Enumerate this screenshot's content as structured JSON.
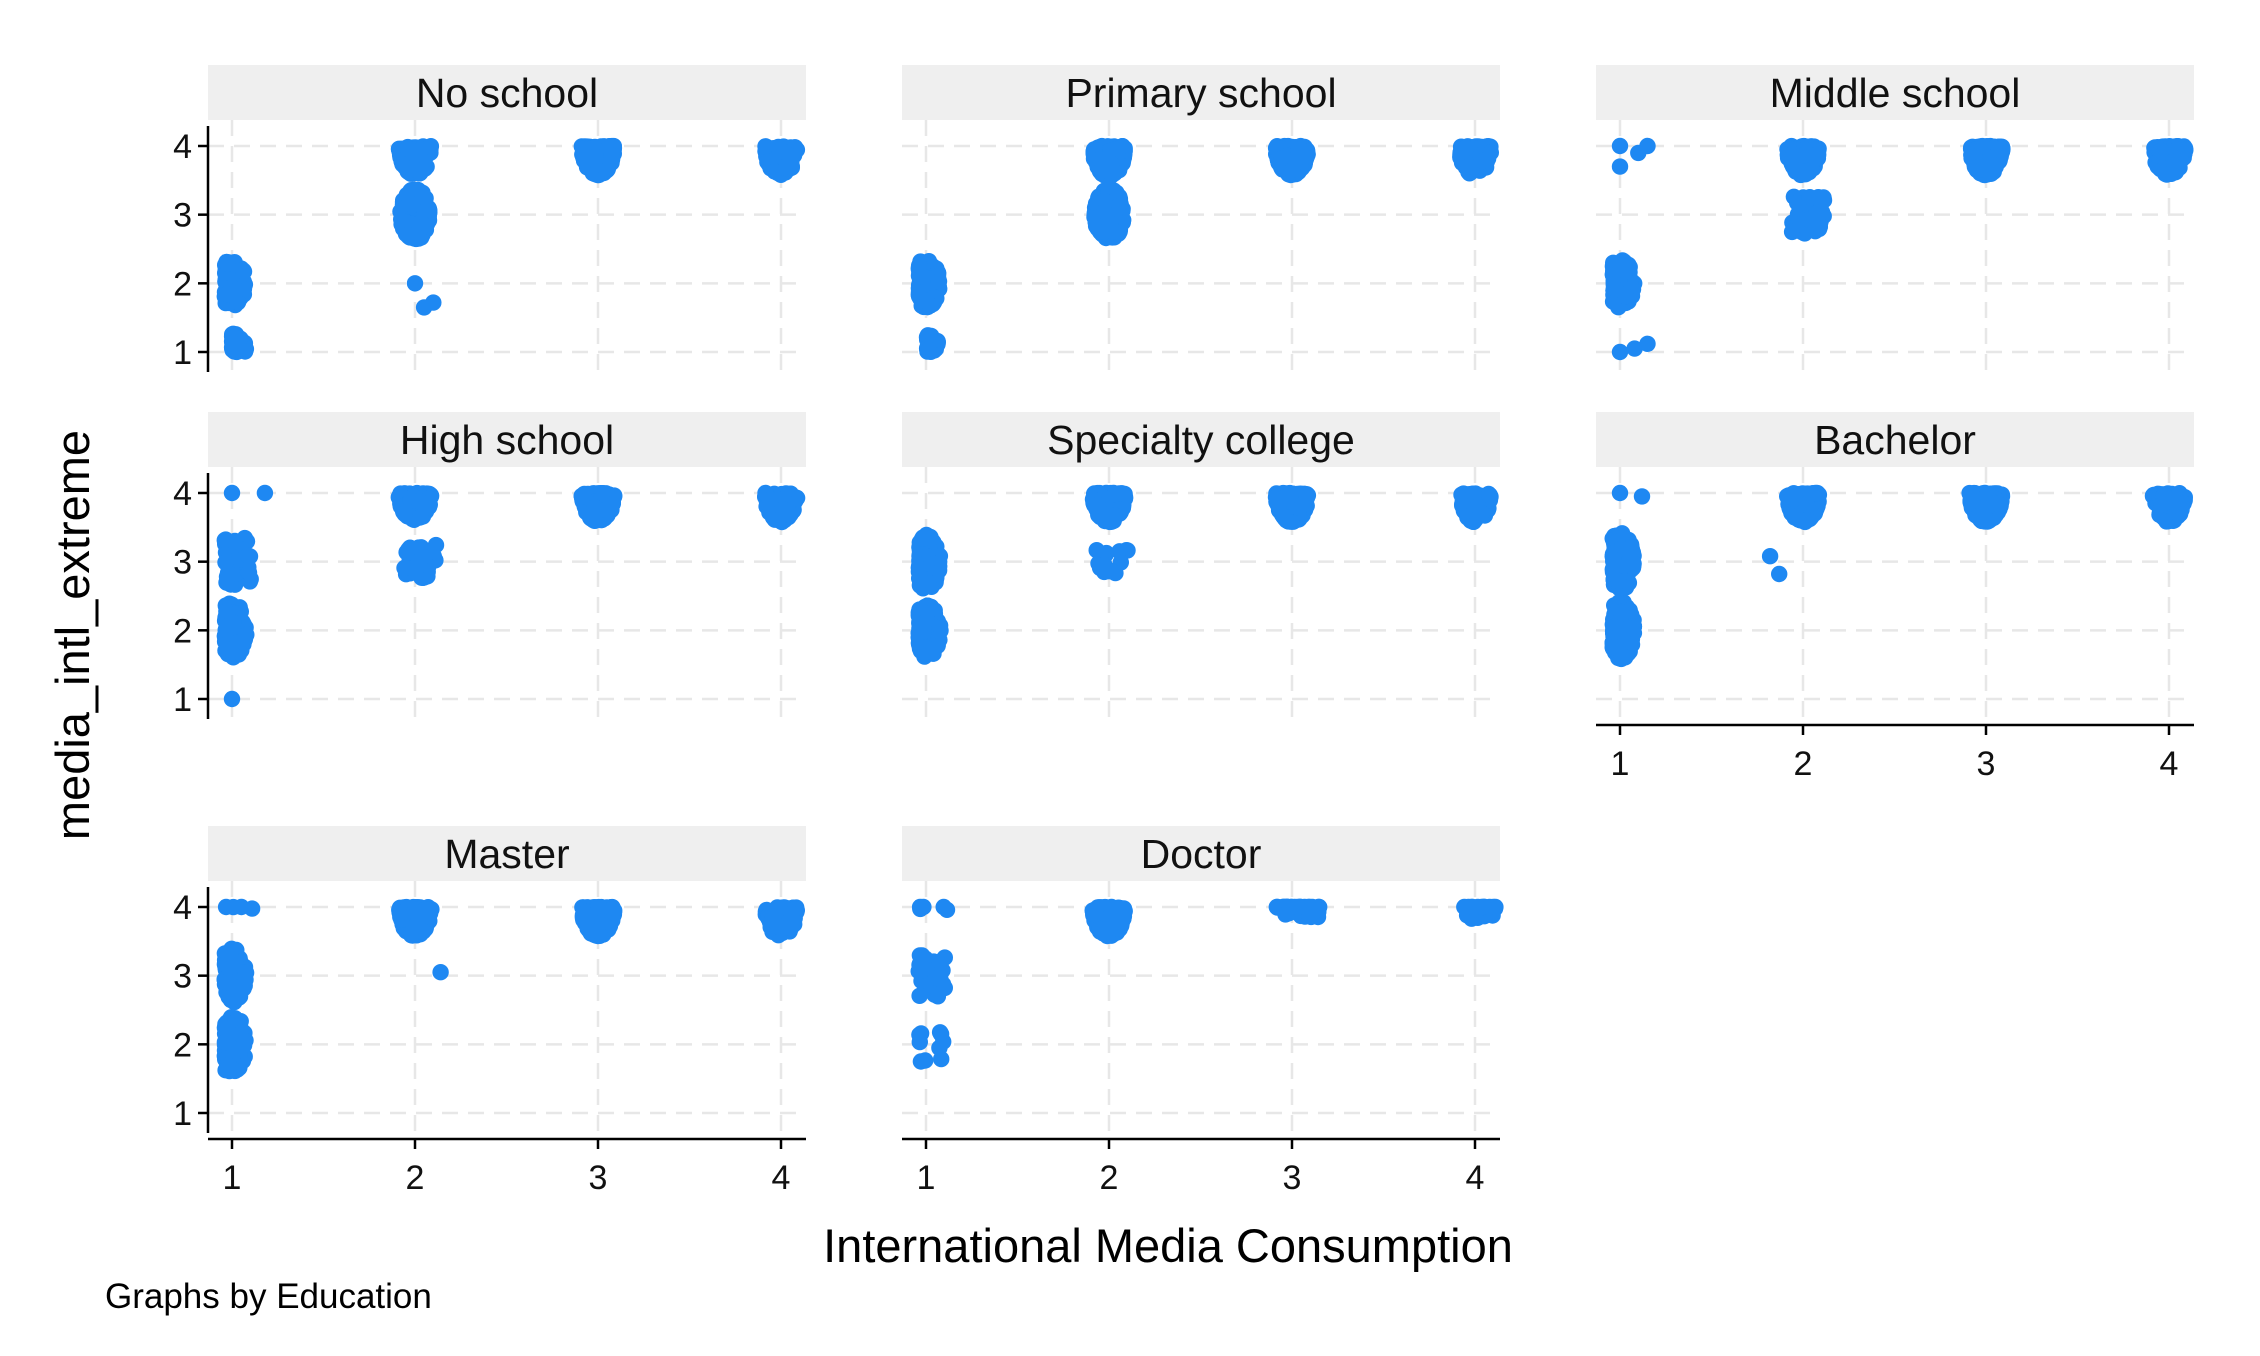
{
  "chart_data": {
    "type": "scatter",
    "jitter": true,
    "xlabel": "International Media Consumption",
    "ylabel": "media_intl_extreme",
    "note": "Graphs by Education",
    "xlim": [
      1,
      4
    ],
    "ylim": [
      1,
      4
    ],
    "xticks": [
      "1",
      "2",
      "3",
      "4"
    ],
    "yticks": [
      "1",
      "2",
      "3",
      "4"
    ],
    "grid": true,
    "marker_color": "#1e88f2",
    "panels": [
      {
        "name": "No school",
        "groups": [
          {
            "x": 1,
            "y": 2,
            "n": 110,
            "shape": "disc",
            "sy": 0.7
          },
          {
            "x": 1,
            "y": 1,
            "n": 70,
            "shape": "half-up",
            "sy": 0.6
          },
          {
            "x": 2,
            "y": 3,
            "n": 230,
            "shape": "disc",
            "sy": 0.75
          },
          {
            "x": 2,
            "y": 4,
            "n": 170,
            "shape": "half-down",
            "sy": 0.85
          },
          {
            "x": 2,
            "y": 2,
            "n": 1,
            "shape": "point"
          },
          {
            "x": 2.05,
            "y": 1.65,
            "n": 1,
            "shape": "point"
          },
          {
            "x": 2.1,
            "y": 1.72,
            "n": 1,
            "shape": "point"
          },
          {
            "x": 3,
            "y": 4,
            "n": 260,
            "shape": "half-down",
            "sy": 0.85
          },
          {
            "x": 4,
            "y": 4,
            "n": 110,
            "shape": "half-down",
            "sy": 0.85
          }
        ]
      },
      {
        "name": "Primary school",
        "groups": [
          {
            "x": 1,
            "y": 2,
            "n": 130,
            "shape": "disc",
            "sy": 0.7
          },
          {
            "x": 1,
            "y": 1,
            "n": 30,
            "shape": "half-up",
            "sy": 0.6
          },
          {
            "x": 2,
            "y": 3,
            "n": 260,
            "shape": "disc",
            "sy": 0.75
          },
          {
            "x": 2,
            "y": 4,
            "n": 260,
            "shape": "half-down",
            "sy": 0.9
          },
          {
            "x": 3,
            "y": 4,
            "n": 260,
            "shape": "half-down",
            "sy": 0.85
          },
          {
            "x": 4,
            "y": 4,
            "n": 110,
            "shape": "half-down",
            "sy": 0.85
          }
        ]
      },
      {
        "name": "Middle school",
        "groups": [
          {
            "x": 1,
            "y": 2,
            "n": 130,
            "shape": "disc",
            "sy": 0.7
          },
          {
            "x": 1,
            "y": 4,
            "n": 1,
            "shape": "point"
          },
          {
            "x": 1.1,
            "y": 3.9,
            "n": 1,
            "shape": "point"
          },
          {
            "x": 1.15,
            "y": 4,
            "n": 1,
            "shape": "point"
          },
          {
            "x": 1,
            "y": 3.7,
            "n": 1,
            "shape": "point"
          },
          {
            "x": 1,
            "y": 1,
            "n": 1,
            "shape": "point"
          },
          {
            "x": 1.08,
            "y": 1.05,
            "n": 1,
            "shape": "point"
          },
          {
            "x": 1.15,
            "y": 1.12,
            "n": 1,
            "shape": "point"
          },
          {
            "x": 2,
            "y": 4,
            "n": 220,
            "shape": "half-down",
            "sy": 0.85
          },
          {
            "x": 2,
            "y": 3,
            "n": 45,
            "shape": "spread",
            "sx": 0.09,
            "sy": 0.55
          },
          {
            "x": 3,
            "y": 4,
            "n": 260,
            "shape": "half-down",
            "sy": 0.85
          },
          {
            "x": 4,
            "y": 4,
            "n": 110,
            "shape": "half-down",
            "sy": 0.85
          }
        ]
      },
      {
        "name": "High school",
        "groups": [
          {
            "x": 1,
            "y": 2,
            "n": 120,
            "shape": "disc",
            "sy": 0.8
          },
          {
            "x": 1,
            "y": 3,
            "n": 45,
            "shape": "spread",
            "sx": 0.08,
            "sy": 0.7
          },
          {
            "x": 1,
            "y": 4,
            "n": 1,
            "shape": "point"
          },
          {
            "x": 1.18,
            "y": 4,
            "n": 1,
            "shape": "point"
          },
          {
            "x": 1,
            "y": 1,
            "n": 1,
            "shape": "point"
          },
          {
            "x": 2,
            "y": 4,
            "n": 250,
            "shape": "half-down",
            "sy": 0.8
          },
          {
            "x": 2,
            "y": 3,
            "n": 40,
            "shape": "spread",
            "sx": 0.09,
            "sy": 0.5
          },
          {
            "x": 3,
            "y": 4,
            "n": 260,
            "shape": "half-down",
            "sy": 0.85
          },
          {
            "x": 4,
            "y": 4,
            "n": 110,
            "shape": "half-down",
            "sy": 0.85
          }
        ]
      },
      {
        "name": "Specialty college",
        "groups": [
          {
            "x": 1,
            "y": 2,
            "n": 130,
            "shape": "disc",
            "sy": 0.8
          },
          {
            "x": 1,
            "y": 3,
            "n": 130,
            "shape": "disc",
            "sy": 0.8
          },
          {
            "x": 2,
            "y": 4,
            "n": 260,
            "shape": "half-down",
            "sy": 0.85
          },
          {
            "x": 2,
            "y": 3,
            "n": 14,
            "shape": "spread",
            "sx": 0.1,
            "sy": 0.35
          },
          {
            "x": 3,
            "y": 4,
            "n": 260,
            "shape": "half-down",
            "sy": 0.85
          },
          {
            "x": 4,
            "y": 4,
            "n": 110,
            "shape": "half-down",
            "sy": 0.85
          }
        ]
      },
      {
        "name": "Bachelor",
        "groups": [
          {
            "x": 1,
            "y": 2,
            "n": 150,
            "shape": "disc",
            "sy": 0.85
          },
          {
            "x": 1,
            "y": 3,
            "n": 150,
            "shape": "disc",
            "sy": 0.85
          },
          {
            "x": 1,
            "y": 4,
            "n": 1,
            "shape": "point"
          },
          {
            "x": 1.12,
            "y": 3.95,
            "n": 1,
            "shape": "point"
          },
          {
            "x": 2,
            "y": 4,
            "n": 260,
            "shape": "half-down",
            "sy": 0.85
          },
          {
            "x": 1.82,
            "y": 3.08,
            "n": 1,
            "shape": "point"
          },
          {
            "x": 1.87,
            "y": 2.82,
            "n": 1,
            "shape": "point"
          },
          {
            "x": 3,
            "y": 4,
            "n": 260,
            "shape": "half-down",
            "sy": 0.85
          },
          {
            "x": 4,
            "y": 4,
            "n": 110,
            "shape": "half-down",
            "sy": 0.85
          }
        ]
      },
      {
        "name": "Master",
        "groups": [
          {
            "x": 1,
            "y": 3,
            "n": 130,
            "shape": "disc",
            "sy": 0.8
          },
          {
            "x": 1,
            "y": 2,
            "n": 120,
            "shape": "disc",
            "sy": 0.85
          },
          {
            "x": 1,
            "y": 4,
            "n": 4,
            "shape": "spread",
            "sx": 0.1,
            "sy": 0.05
          },
          {
            "x": 2,
            "y": 4,
            "n": 260,
            "shape": "half-down",
            "sy": 0.85
          },
          {
            "x": 2.14,
            "y": 3.05,
            "n": 1,
            "shape": "point"
          },
          {
            "x": 3,
            "y": 4,
            "n": 260,
            "shape": "half-down",
            "sy": 0.85
          },
          {
            "x": 4,
            "y": 4,
            "n": 110,
            "shape": "half-down",
            "sy": 0.85
          }
        ]
      },
      {
        "name": "Doctor",
        "groups": [
          {
            "x": 1,
            "y": 3,
            "n": 40,
            "shape": "spread",
            "sx": 0.08,
            "sy": 0.6
          },
          {
            "x": 1,
            "y": 2,
            "n": 10,
            "shape": "spread",
            "sx": 0.08,
            "sy": 0.5
          },
          {
            "x": 1,
            "y": 4,
            "n": 5,
            "shape": "spread",
            "sx": 0.1,
            "sy": 0.1
          },
          {
            "x": 2,
            "y": 4,
            "n": 260,
            "shape": "half-down",
            "sy": 0.85
          },
          {
            "x": 3,
            "y": 4,
            "n": 40,
            "shape": "spread",
            "sx": 0.12,
            "sy": 0.35
          },
          {
            "x": 4,
            "y": 4,
            "n": 25,
            "shape": "spread",
            "sx": 0.09,
            "sy": 0.4
          }
        ]
      }
    ]
  }
}
